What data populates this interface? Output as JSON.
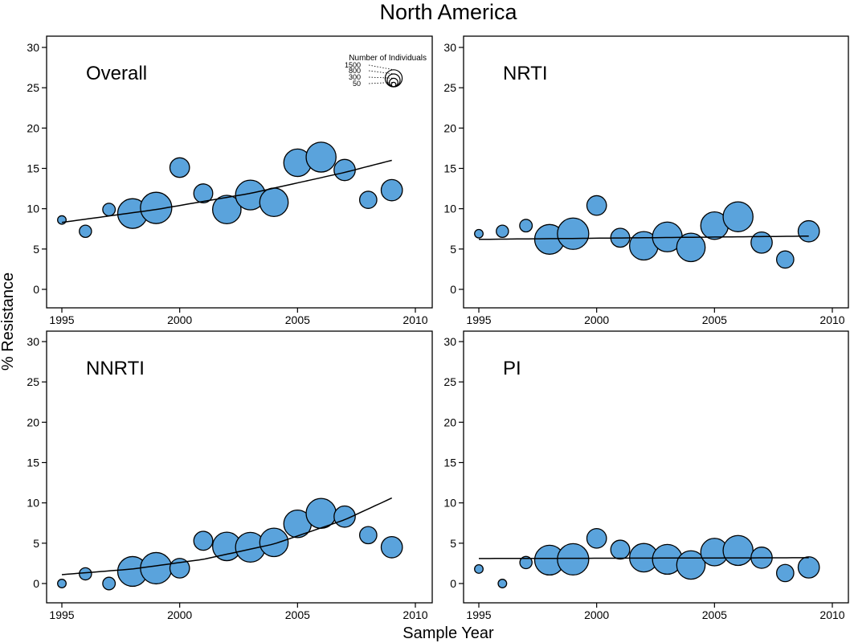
{
  "figure": {
    "title": "North America",
    "xlabel": "Sample Year",
    "ylabel": "% Resistance"
  },
  "legend": {
    "title": "Number of Individuals",
    "entries": [
      {
        "label": "1500",
        "n": 1500
      },
      {
        "label": "800",
        "n": 800
      },
      {
        "label": "300",
        "n": 300
      },
      {
        "label": "50",
        "n": 50
      }
    ]
  },
  "colors": {
    "bubble_fill": "#5aa3dc",
    "bubble_stroke": "#000000",
    "axis": "#000000"
  },
  "chart_data": [
    {
      "type": "scatter",
      "title": "Overall",
      "xlim": [
        1995,
        2010
      ],
      "ylim": [
        0,
        30
      ],
      "xticks": [
        "1995",
        "2000",
        "2005",
        "2010"
      ],
      "yticks": [
        "0",
        "5",
        "10",
        "15",
        "20",
        "25",
        "30"
      ],
      "points": [
        {
          "x": 1995,
          "y": 8.6,
          "n": 40
        },
        {
          "x": 1996,
          "y": 7.2,
          "n": 120
        },
        {
          "x": 1997,
          "y": 9.9,
          "n": 130
        },
        {
          "x": 1998,
          "y": 9.4,
          "n": 1100
        },
        {
          "x": 1999,
          "y": 10.1,
          "n": 1250
        },
        {
          "x": 2000,
          "y": 15.1,
          "n": 420
        },
        {
          "x": 2001,
          "y": 11.9,
          "n": 380
        },
        {
          "x": 2002,
          "y": 9.9,
          "n": 1000
        },
        {
          "x": 2003,
          "y": 11.7,
          "n": 1100
        },
        {
          "x": 2004,
          "y": 10.8,
          "n": 1000
        },
        {
          "x": 2005,
          "y": 15.7,
          "n": 920
        },
        {
          "x": 2006,
          "y": 16.4,
          "n": 1120
        },
        {
          "x": 2007,
          "y": 14.8,
          "n": 500
        },
        {
          "x": 2008,
          "y": 11.1,
          "n": 300
        },
        {
          "x": 2009,
          "y": 12.3,
          "n": 500
        }
      ],
      "trend": {
        "x": [
          1995,
          1999,
          2003,
          2007,
          2009
        ],
        "y": [
          8.3,
          9.9,
          11.9,
          14.5,
          16.0
        ]
      }
    },
    {
      "type": "scatter",
      "title": "NRTI",
      "xlim": [
        1995,
        2010
      ],
      "ylim": [
        0,
        30
      ],
      "xticks": [
        "1995",
        "2000",
        "2005",
        "2010"
      ],
      "yticks": [
        "0",
        "5",
        "10",
        "15",
        "20",
        "25",
        "30"
      ],
      "points": [
        {
          "x": 1995,
          "y": 6.9,
          "n": 40
        },
        {
          "x": 1996,
          "y": 7.2,
          "n": 120
        },
        {
          "x": 1997,
          "y": 7.9,
          "n": 130
        },
        {
          "x": 1998,
          "y": 6.2,
          "n": 1100
        },
        {
          "x": 1999,
          "y": 6.9,
          "n": 1250
        },
        {
          "x": 2000,
          "y": 10.4,
          "n": 420
        },
        {
          "x": 2001,
          "y": 6.4,
          "n": 380
        },
        {
          "x": 2002,
          "y": 5.4,
          "n": 1000
        },
        {
          "x": 2003,
          "y": 6.5,
          "n": 1100
        },
        {
          "x": 2004,
          "y": 5.2,
          "n": 1000
        },
        {
          "x": 2005,
          "y": 7.9,
          "n": 920
        },
        {
          "x": 2006,
          "y": 9.0,
          "n": 1120
        },
        {
          "x": 2007,
          "y": 5.8,
          "n": 500
        },
        {
          "x": 2008,
          "y": 3.7,
          "n": 300
        },
        {
          "x": 2009,
          "y": 7.2,
          "n": 500
        }
      ],
      "trend": {
        "x": [
          1995,
          2009
        ],
        "y": [
          6.2,
          6.6
        ]
      }
    },
    {
      "type": "scatter",
      "title": "NNRTI",
      "xlim": [
        1995,
        2010
      ],
      "ylim": [
        0,
        30
      ],
      "xticks": [
        "1995",
        "2000",
        "2005",
        "2010"
      ],
      "yticks": [
        "0",
        "5",
        "10",
        "15",
        "20",
        "25",
        "30"
      ],
      "points": [
        {
          "x": 1995,
          "y": 0.0,
          "n": 40
        },
        {
          "x": 1996,
          "y": 1.2,
          "n": 120
        },
        {
          "x": 1997,
          "y": 0.0,
          "n": 130
        },
        {
          "x": 1998,
          "y": 1.5,
          "n": 1100
        },
        {
          "x": 1999,
          "y": 1.9,
          "n": 1250
        },
        {
          "x": 2000,
          "y": 1.9,
          "n": 420
        },
        {
          "x": 2001,
          "y": 5.3,
          "n": 380
        },
        {
          "x": 2002,
          "y": 4.6,
          "n": 1000
        },
        {
          "x": 2003,
          "y": 4.5,
          "n": 1100
        },
        {
          "x": 2004,
          "y": 5.1,
          "n": 1000
        },
        {
          "x": 2005,
          "y": 7.4,
          "n": 920
        },
        {
          "x": 2006,
          "y": 8.7,
          "n": 1120
        },
        {
          "x": 2007,
          "y": 8.3,
          "n": 500
        },
        {
          "x": 2008,
          "y": 6.0,
          "n": 300
        },
        {
          "x": 2009,
          "y": 4.5,
          "n": 500
        }
      ],
      "trend": {
        "x": [
          1995,
          1998,
          2001,
          2004,
          2007,
          2009
        ],
        "y": [
          1.1,
          1.8,
          3.0,
          4.9,
          7.9,
          10.6
        ]
      }
    },
    {
      "type": "scatter",
      "title": "PI",
      "xlim": [
        1995,
        2010
      ],
      "ylim": [
        0,
        30
      ],
      "xticks": [
        "1995",
        "2000",
        "2005",
        "2010"
      ],
      "yticks": [
        "0",
        "5",
        "10",
        "15",
        "20",
        "25",
        "30"
      ],
      "points": [
        {
          "x": 1995,
          "y": 1.8,
          "n": 40
        },
        {
          "x": 1996,
          "y": 0.0,
          "n": 40
        },
        {
          "x": 1997,
          "y": 2.6,
          "n": 120
        },
        {
          "x": 1998,
          "y": 2.9,
          "n": 1100
        },
        {
          "x": 1999,
          "y": 3.0,
          "n": 1250
        },
        {
          "x": 2000,
          "y": 5.6,
          "n": 420
        },
        {
          "x": 2001,
          "y": 4.2,
          "n": 380
        },
        {
          "x": 2002,
          "y": 3.2,
          "n": 1000
        },
        {
          "x": 2003,
          "y": 3.0,
          "n": 1100
        },
        {
          "x": 2004,
          "y": 2.3,
          "n": 1000
        },
        {
          "x": 2005,
          "y": 3.9,
          "n": 920
        },
        {
          "x": 2006,
          "y": 4.1,
          "n": 1120
        },
        {
          "x": 2007,
          "y": 3.2,
          "n": 500
        },
        {
          "x": 2008,
          "y": 1.3,
          "n": 300
        },
        {
          "x": 2009,
          "y": 2.0,
          "n": 500
        }
      ],
      "trend": {
        "x": [
          1995,
          2009
        ],
        "y": [
          3.1,
          3.2
        ]
      }
    }
  ]
}
